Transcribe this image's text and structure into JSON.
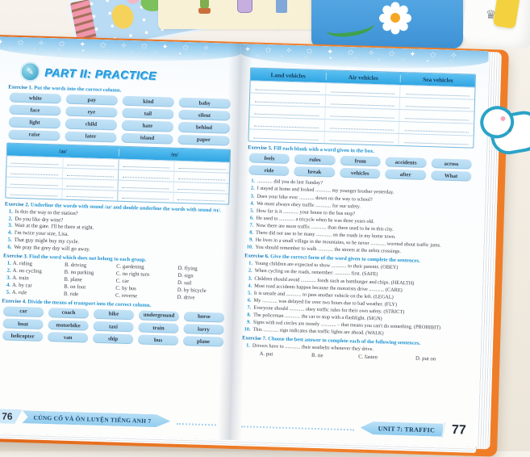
{
  "decor": {
    "sticker_letter": "c",
    "crown_glyph": "♛",
    "header_icon_glyph": "✎"
  },
  "left_page": {
    "header_title": "PART II: PRACTICE",
    "exercise1": {
      "title_label": "Exercise 1.",
      "title_text": "Put the words into the correct column.",
      "words": [
        "white",
        "pay",
        "kind",
        "baby",
        "face",
        "eye",
        "tail",
        "silent",
        "light",
        "child",
        "hate",
        "behind",
        "raise",
        "later",
        "island",
        "paper"
      ],
      "table_headers": [
        "/aɪ/",
        "/eɪ/"
      ]
    },
    "exercise2": {
      "title_label": "Exercise 2.",
      "title_text": "Underline the words with sound /aɪ/ and double underline the words with sound /eɪ/.",
      "items": [
        {
          "n": "1.",
          "text": "Is this the way to the station?"
        },
        {
          "n": "2.",
          "text": "Do you like dry wine?"
        },
        {
          "n": "3.",
          "text": "Wait at the gate. I'll be there at eight."
        },
        {
          "n": "4.",
          "text": "I'm twice your size, Lisa."
        },
        {
          "n": "5.",
          "text": "That guy might buy my cycle."
        },
        {
          "n": "6.",
          "text": "We pray the grey day will go away."
        }
      ]
    },
    "exercise3": {
      "title_label": "Exercise 3.",
      "title_text": "Find the word which does not belong to each group.",
      "rows": [
        {
          "n": "1.",
          "a": "A. riding",
          "b": "B. driving",
          "c": "C. gardening",
          "d": "D. flying"
        },
        {
          "n": "2.",
          "a": "A. no cycling",
          "b": "B. no parking",
          "c": "C. no right turn",
          "d": "D. sign"
        },
        {
          "n": "3.",
          "a": "A. train",
          "b": "B. plane",
          "c": "C. car",
          "d": "D. sail"
        },
        {
          "n": "4.",
          "a": "A. by car",
          "b": "B. on foot",
          "c": "C. by bus",
          "d": "D. by bicycle"
        },
        {
          "n": "5.",
          "a": "A. rule",
          "b": "B. ride",
          "c": "C. reverse",
          "d": "D. drive"
        }
      ]
    },
    "exercise4": {
      "title_label": "Exercise 4.",
      "title_text": "Divide the means of transport into the correct column.",
      "words": [
        "car",
        "coach",
        "bike",
        "underground",
        "horse",
        "boat",
        "motorbike",
        "taxi",
        "train",
        "lorry",
        "helicopter",
        "van",
        "ship",
        "bus",
        "plane"
      ]
    },
    "footer": {
      "page_number": "76",
      "banner": "CỦNG CỐ VÀ ÔN LUYỆN TIẾNG ANH 7"
    }
  },
  "right_page": {
    "vehicle_table": {
      "headers": [
        "Land vehicles",
        "Air vehicles",
        "Sea vehicles"
      ]
    },
    "exercise5": {
      "title_label": "Exercise 5.",
      "title_text": "Fill each blank with a word given in the box.",
      "box_words": [
        "feels",
        "rules",
        "from",
        "accidents",
        "across",
        "ride",
        "break",
        "vehicles",
        "after",
        "What"
      ],
      "items": [
        {
          "n": "1.",
          "text": "............ did you do last Sunday?"
        },
        {
          "n": "2.",
          "text": "I stayed at home and looked ............ my younger brother yesterday."
        },
        {
          "n": "3.",
          "text": "Does your bike ever ............ down on the way to school?"
        },
        {
          "n": "4.",
          "text": "We must always obey traffic ............ for our safety."
        },
        {
          "n": "5.",
          "text": "How far is it ............ your house to the bus stop?"
        },
        {
          "n": "6.",
          "text": "He used to ............ a tricycle when he was three years old."
        },
        {
          "n": "7.",
          "text": "Now there are more traffic ............ than there used to be in this city."
        },
        {
          "n": "8.",
          "text": "There did not use to be many ............ on the roads in my home town."
        },
        {
          "n": "9.",
          "text": "He lives in a small village in the mountains, so he never ............ worried about traffic jams."
        },
        {
          "n": "10.",
          "text": "You should remember to walk ............ the streets at the zebra crossings."
        }
      ]
    },
    "exercise6": {
      "title_label": "Exercise 6.",
      "title_text": "Give the correct form of the word given to complete the sentences.",
      "items": [
        {
          "n": "1.",
          "text": "Young children are expected to show ............ to their parents. (OBEY)"
        },
        {
          "n": "2.",
          "text": "When cycling on the roads, remember: ............ first. (SAFE)"
        },
        {
          "n": "3.",
          "text": "Children should avoid ............ foods such as hamburger and chips. (HEALTH)"
        },
        {
          "n": "4.",
          "text": "Most road accidents happen because the motorists drive ............ (CARE)"
        },
        {
          "n": "5.",
          "text": "It is unsafe and ............ to pass another vehicle on the left. (LEGAL)"
        },
        {
          "n": "6.",
          "text": "My ............ was delayed for over two hours due to bad weather. (FLY)"
        },
        {
          "n": "7.",
          "text": "Everyone should ............ obey traffic rules for their own safety. (STRICT)"
        },
        {
          "n": "8.",
          "text": "The policeman ............ the car to stop with a flashlight. (SIGN)"
        },
        {
          "n": "9.",
          "text": "Signs with red circles are mostly ............ – that means you can't do something. (PROHIBIT)"
        },
        {
          "n": "10.",
          "text": "This ............ sign indicates that traffic lights are ahead. (WALK)"
        }
      ]
    },
    "exercise7": {
      "title_label": "Exercise 7.",
      "title_text": "Choose the best answer to complete each of the following sentences.",
      "q_n": "1.",
      "q_text": "Drivers have to ............ their seatbelts whenever they drive.",
      "options": [
        "A. put",
        "B. tie",
        "C. fasten",
        "D. put on"
      ]
    },
    "footer": {
      "banner": "UNIT 7: TRAFFIC",
      "page_number": "77"
    }
  }
}
